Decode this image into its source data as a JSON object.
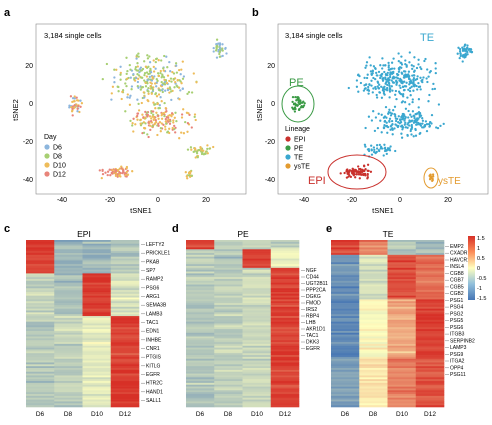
{
  "panels": {
    "a": {
      "letter": "a",
      "cell_count": "3,184 single cells",
      "xlabel": "tSNE1",
      "ylabel": "tSNE2",
      "xticks": [
        "-40",
        "-20",
        "0",
        "20"
      ],
      "yticks": [
        "20",
        "0",
        "-20",
        "-40"
      ],
      "legend_title": "Day",
      "legend": [
        {
          "label": "D6",
          "color": "#8db6dd"
        },
        {
          "label": "D8",
          "color": "#a7cf72"
        },
        {
          "label": "D10",
          "color": "#eebc5a"
        },
        {
          "label": "D12",
          "color": "#e8847a"
        }
      ]
    },
    "b": {
      "letter": "b",
      "cell_count": "3,184 single cells",
      "xlabel": "tSNE1",
      "ylabel": "tSNE2",
      "xticks": [
        "-40",
        "-20",
        "0",
        "20"
      ],
      "yticks": [
        "20",
        "0",
        "-20",
        "-40"
      ],
      "legend_title": "Lineage",
      "legend": [
        {
          "label": "EPI",
          "color": "#c9302c"
        },
        {
          "label": "PE",
          "color": "#3a9a45"
        },
        {
          "label": "TE",
          "color": "#3aa7cf"
        },
        {
          "label": "ysTE",
          "color": "#e39b2f"
        }
      ],
      "cluster_labels": {
        "te": "TE",
        "pe": "PE",
        "epi": "EPI",
        "yste": "ysTE"
      }
    },
    "c": {
      "letter": "c",
      "title": "EPI",
      "columns": [
        "D6",
        "D8",
        "D10",
        "D12"
      ],
      "genes": [
        "LEFTY2",
        "PRICKLE1",
        "PKAB",
        "SP7",
        "RAMP2",
        "PSG6",
        "ARG1",
        "SEMA3B",
        "LAMB3",
        "TAC1",
        "EDN1",
        "INHBE",
        "CNR1",
        "PTGIS",
        "KITLG",
        "EGFR",
        "HTR2C",
        "HAND1",
        "SALL1"
      ]
    },
    "d": {
      "letter": "d",
      "title": "PE",
      "columns": [
        "D6",
        "D8",
        "D10",
        "D12"
      ],
      "genes": [
        "NGF",
        "CD44",
        "UGT2B11",
        "PPP2CA",
        "DGKG",
        "FMOD",
        "IRS2",
        "RBP4",
        "LHB",
        "AKR1D1",
        "TAC1",
        "DKK3",
        "EGFR"
      ]
    },
    "e": {
      "letter": "e",
      "title": "TE",
      "columns": [
        "D6",
        "D8",
        "D10",
        "D12"
      ],
      "genes": [
        "EMP2",
        "CXADR",
        "HAVCR1",
        "INSL4",
        "CGB8",
        "CGB7",
        "CGB5",
        "CGB2",
        "PSG1",
        "PSG4",
        "PSG2",
        "PSG5",
        "PSG6",
        "ITGB3",
        "SERPINB2",
        "LAMP3",
        "PSG9",
        "ITGA2",
        "OPP4",
        "PSG11"
      ],
      "colorbar_ticks": [
        "1.5",
        "1",
        "0.5",
        "0",
        "-0.5",
        "-1",
        "-1.5"
      ]
    }
  },
  "colors": {
    "heat_high": "#d73027",
    "heat_mid": "#ffffbf",
    "heat_low": "#4575b4"
  }
}
